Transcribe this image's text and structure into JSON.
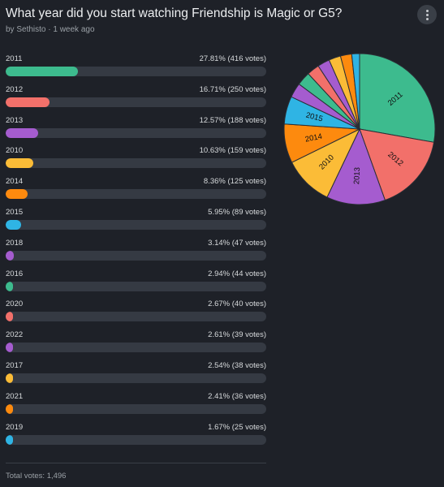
{
  "poll": {
    "title": "What year did you start watching Friendship is Magic or G5?",
    "meta": "by Sethisto · 1 week ago",
    "total": "Total votes: 1,496"
  },
  "options": [
    {
      "label": "2011",
      "votes": 416,
      "pct_text": "27.81% (416 votes)",
      "color": "#3dbb8e"
    },
    {
      "label": "2012",
      "votes": 250,
      "pct_text": "16.71% (250 votes)",
      "color": "#f2706a"
    },
    {
      "label": "2013",
      "votes": 188,
      "pct_text": "12.57% (188 votes)",
      "color": "#a55ccf"
    },
    {
      "label": "2010",
      "votes": 159,
      "pct_text": "10.63% (159 votes)",
      "color": "#fbbc37"
    },
    {
      "label": "2014",
      "votes": 125,
      "pct_text": "8.36% (125 votes)",
      "color": "#fd8a0e"
    },
    {
      "label": "2015",
      "votes": 89,
      "pct_text": "5.95% (89 votes)",
      "color": "#2fb4e4"
    },
    {
      "label": "2018",
      "votes": 47,
      "pct_text": "3.14% (47 votes)",
      "color": "#a55ccf"
    },
    {
      "label": "2016",
      "votes": 44,
      "pct_text": "2.94% (44 votes)",
      "color": "#3dbb8e"
    },
    {
      "label": "2020",
      "votes": 40,
      "pct_text": "2.67% (40 votes)",
      "color": "#f2706a"
    },
    {
      "label": "2022",
      "votes": 39,
      "pct_text": "2.61% (39 votes)",
      "color": "#a55ccf"
    },
    {
      "label": "2017",
      "votes": 38,
      "pct_text": "2.54% (38 votes)",
      "color": "#fbbc37"
    },
    {
      "label": "2021",
      "votes": 36,
      "pct_text": "2.41% (36 votes)",
      "color": "#fd8a0e"
    },
    {
      "label": "2019",
      "votes": 25,
      "pct_text": "1.67% (25 votes)",
      "color": "#2fb4e4"
    }
  ],
  "icons": {
    "menu": "more-vertical-icon"
  }
}
